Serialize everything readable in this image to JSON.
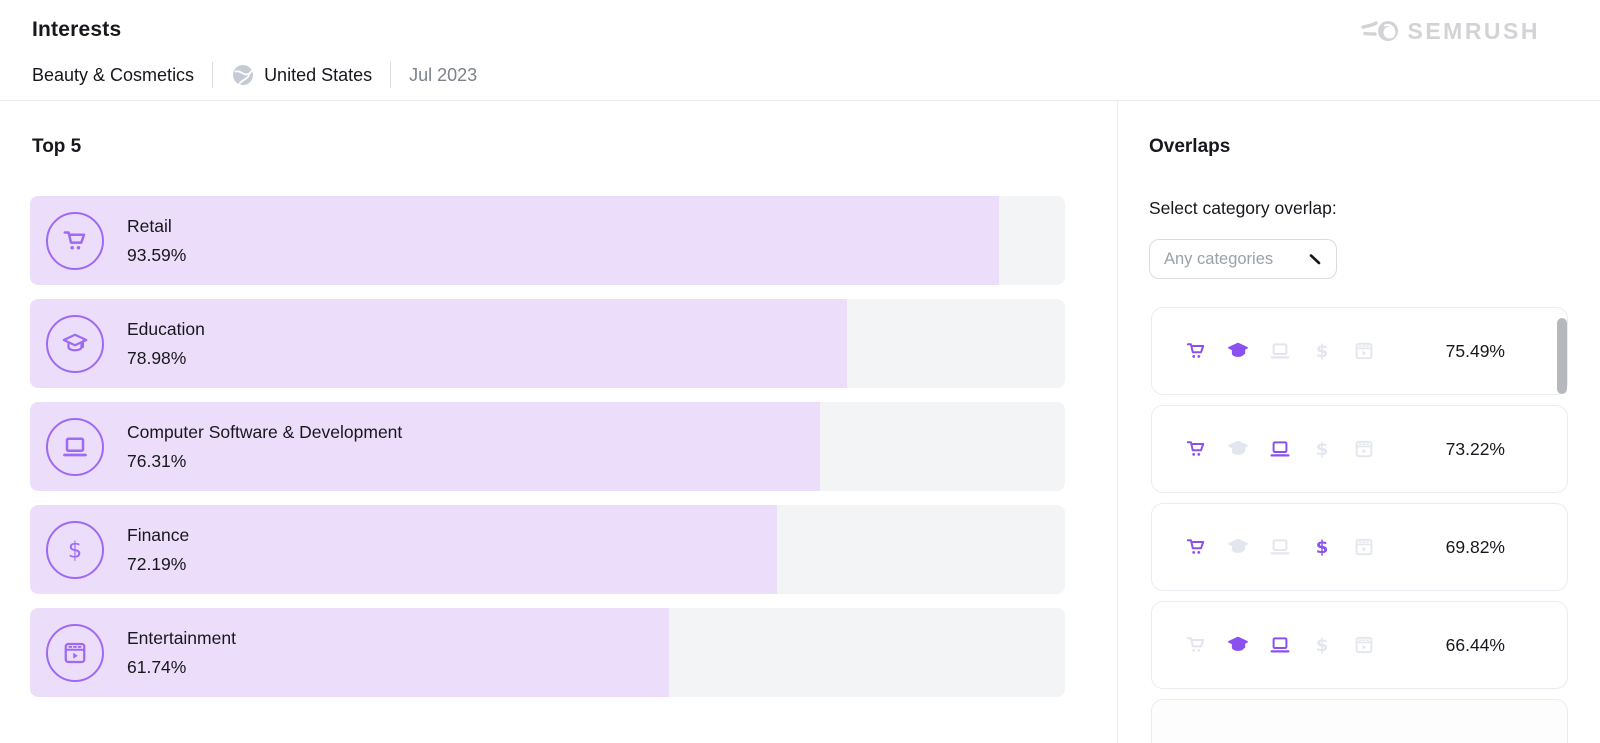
{
  "header": {
    "title": "Interests",
    "category": "Beauty & Cosmetics",
    "location": "United States",
    "date": "Jul 2023",
    "brand": "SEMRUSH"
  },
  "icons": {
    "location_icon": "globe-icon",
    "brand_icon": "semrush-logo",
    "dropdown_icon": "chevron-down-icon",
    "category_icons": [
      "cart",
      "graduation-cap",
      "laptop",
      "dollar",
      "movie"
    ]
  },
  "colors": {
    "accent_purple": "#8a50f0",
    "bar_icon_purple": "#9e6af4",
    "bar_fill": "#ecdefa",
    "bar_track": "#f3f4f6",
    "inactive_icon": "#e3e6ee",
    "text_dark": "#16181d",
    "text_gray": "#7c828c",
    "logo_gray": "#d2d3d6"
  },
  "top5": {
    "heading": "Top 5",
    "items": [
      {
        "label": "Retail",
        "value": "93.59%",
        "pct": 93.59,
        "icon": "cart"
      },
      {
        "label": "Education",
        "value": "78.98%",
        "pct": 78.98,
        "icon": "graduation-cap"
      },
      {
        "label": "Computer Software & Development",
        "value": "76.31%",
        "pct": 76.31,
        "icon": "laptop"
      },
      {
        "label": "Finance",
        "value": "72.19%",
        "pct": 72.19,
        "icon": "dollar"
      },
      {
        "label": "Entertainment",
        "value": "61.74%",
        "pct": 61.74,
        "icon": "movie"
      }
    ]
  },
  "overlaps": {
    "heading": "Overlaps",
    "select_label": "Select category overlap:",
    "dropdown_placeholder": "Any categories",
    "icons": [
      "cart",
      "graduation-cap",
      "laptop",
      "dollar",
      "movie"
    ],
    "rows": [
      {
        "value": "75.49%",
        "active": [
          "cart",
          "graduation-cap"
        ]
      },
      {
        "value": "73.22%",
        "active": [
          "cart",
          "laptop"
        ]
      },
      {
        "value": "69.82%",
        "active": [
          "cart",
          "dollar"
        ]
      },
      {
        "value": "66.44%",
        "active": [
          "graduation-cap",
          "laptop"
        ]
      }
    ]
  },
  "chart_data": [
    {
      "type": "bar",
      "orientation": "horizontal",
      "title": "Top 5",
      "categories": [
        "Retail",
        "Education",
        "Computer Software & Development",
        "Finance",
        "Entertainment"
      ],
      "values": [
        93.59,
        78.98,
        76.31,
        72.19,
        61.74
      ],
      "unit": "%",
      "xlim": [
        0,
        100
      ],
      "grid": false,
      "legend": false
    },
    {
      "type": "table",
      "title": "Overlaps",
      "columns": [
        "category_combination",
        "overlap_pct"
      ],
      "rows": [
        [
          [
            "cart",
            "graduation-cap"
          ],
          75.49
        ],
        [
          [
            "cart",
            "laptop"
          ],
          73.22
        ],
        [
          [
            "cart",
            "dollar"
          ],
          69.82
        ],
        [
          [
            "graduation-cap",
            "laptop"
          ],
          66.44
        ]
      ]
    }
  ]
}
